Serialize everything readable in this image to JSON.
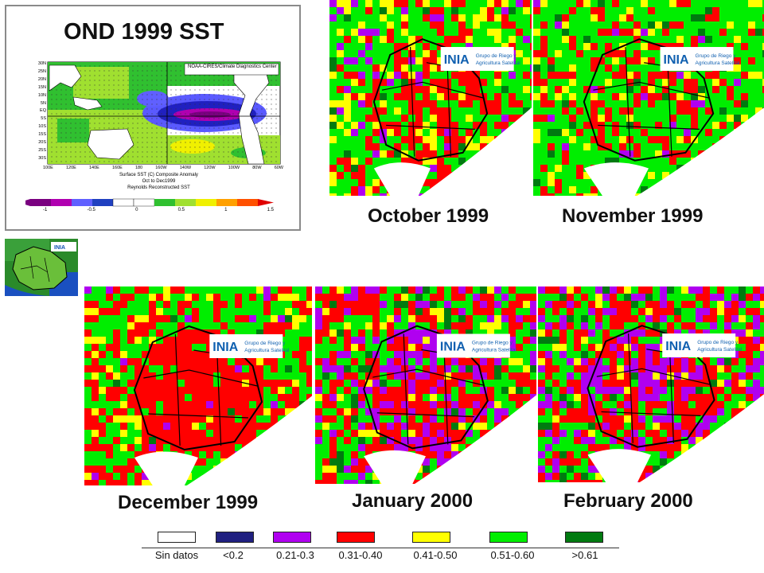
{
  "sst_panel": {
    "title": "OND 1999 SST",
    "header_note": "NOAA-CIRES/Climate Diagnostics Center",
    "lat_ticks": [
      "30N",
      "25N",
      "20N",
      "15N",
      "10N",
      "5N",
      "EQ",
      "5S",
      "10S",
      "15S",
      "20S",
      "25S",
      "30S"
    ],
    "lon_ticks": [
      "100E",
      "120E",
      "140E",
      "160E",
      "180",
      "160W",
      "140W",
      "120W",
      "100W",
      "80W",
      "60W"
    ],
    "caption_lines": [
      "Surface SST (C) Composite Anomaly",
      "Oct to Dec1999",
      "Reynolds Reconstructed SST"
    ],
    "colorbar_ticks": [
      "-1",
      "-0.5",
      "0",
      "0.5",
      "1",
      "1.5"
    ],
    "colorbar_colors": [
      "#7a0080",
      "#b000b0",
      "#6060ff",
      "#2040c0",
      "#ffffff",
      "#30c030",
      "#a0e030",
      "#f0f000",
      "#ffa000",
      "#ff5000",
      "#e00000"
    ]
  },
  "months": [
    {
      "id": "oct",
      "label": "October 1999",
      "dry_level": "medium"
    },
    {
      "id": "nov",
      "label": "November 1999",
      "dry_level": "low"
    },
    {
      "id": "dec",
      "label": "December 1999",
      "dry_level": "high"
    },
    {
      "id": "jan",
      "label": "January 2000",
      "dry_level": "very-high"
    },
    {
      "id": "feb",
      "label": "February 2000",
      "dry_level": "very-high"
    }
  ],
  "logo": {
    "letters": "INIA",
    "line1": "Grupo de Riego y",
    "line2": "Agricultura Satelital"
  },
  "legend": {
    "items": [
      {
        "label": "Sin datos",
        "color": "#ffffff"
      },
      {
        "label": "<0.2",
        "color": "#202080"
      },
      {
        "label": "0.21-0.3",
        "color": "#b000f0"
      },
      {
        "label": "0.31-0.40",
        "color": "#ff0000"
      },
      {
        "label": "0.41-0.50",
        "color": "#ffff00"
      },
      {
        "label": "0.51-0.60",
        "color": "#00ee00"
      },
      {
        "label": ">0.61",
        "color": "#007a10"
      }
    ]
  }
}
